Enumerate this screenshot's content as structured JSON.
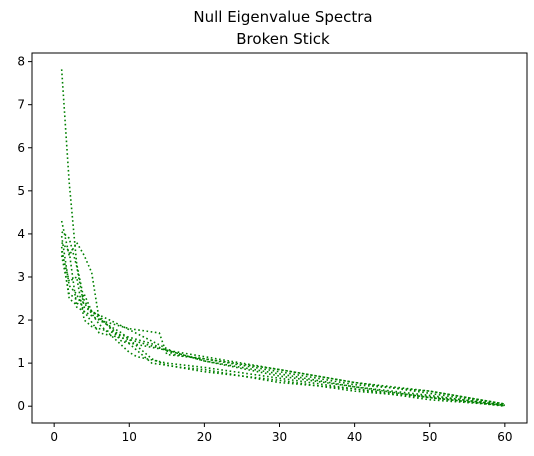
{
  "chart_data": {
    "type": "line",
    "title": "Null Eigenvalue Spectra",
    "subtitle": "Broken Stick",
    "xlabel": "",
    "ylabel": "",
    "xlim": [
      -2.95,
      62.95
    ],
    "ylim": [
      -0.39,
      8.2
    ],
    "xticks": [
      0,
      10,
      20,
      30,
      40,
      50,
      60
    ],
    "yticks": [
      0,
      1,
      2,
      3,
      4,
      5,
      6,
      7,
      8
    ],
    "grid": false,
    "line_style": "dotted",
    "color": "#008000",
    "series": [
      {
        "anchors": [
          [
            1,
            7.82
          ],
          [
            2,
            5.2
          ],
          [
            3,
            3.3
          ],
          [
            4,
            2.45
          ],
          [
            5,
            2.2
          ],
          [
            8,
            1.95
          ],
          [
            12,
            1.6
          ],
          [
            16,
            1.25
          ],
          [
            20,
            1.05
          ],
          [
            30,
            0.75
          ],
          [
            40,
            0.45
          ],
          [
            50,
            0.25
          ],
          [
            60,
            0.02
          ]
        ]
      },
      {
        "anchors": [
          [
            1,
            4.3
          ],
          [
            2,
            3.5
          ],
          [
            3,
            3.8
          ],
          [
            4,
            3.5
          ],
          [
            5,
            3.1
          ],
          [
            6,
            2.0
          ],
          [
            10,
            1.8
          ],
          [
            14,
            1.7
          ],
          [
            15,
            1.2
          ],
          [
            20,
            1.1
          ],
          [
            30,
            0.8
          ],
          [
            40,
            0.5
          ],
          [
            50,
            0.35
          ],
          [
            60,
            0.05
          ]
        ]
      },
      {
        "anchors": [
          [
            1,
            4.05
          ],
          [
            2,
            3.9
          ],
          [
            3,
            3.25
          ],
          [
            4,
            2.3
          ],
          [
            6,
            2.1
          ],
          [
            9,
            1.5
          ],
          [
            12,
            1.4
          ],
          [
            15,
            1.3
          ],
          [
            20,
            1.15
          ],
          [
            30,
            0.85
          ],
          [
            40,
            0.55
          ],
          [
            50,
            0.3
          ],
          [
            60,
            0.03
          ]
        ]
      },
      {
        "anchors": [
          [
            1,
            3.95
          ],
          [
            2,
            2.8
          ],
          [
            3,
            2.6
          ],
          [
            4,
            2.2
          ],
          [
            6,
            1.7
          ],
          [
            10,
            1.55
          ],
          [
            15,
            1.3
          ],
          [
            20,
            1.05
          ],
          [
            30,
            0.7
          ],
          [
            40,
            0.45
          ],
          [
            50,
            0.2
          ],
          [
            60,
            0.01
          ]
        ]
      },
      {
        "anchors": [
          [
            1,
            3.8
          ],
          [
            2,
            3.6
          ],
          [
            3,
            2.3
          ],
          [
            4,
            2.2
          ],
          [
            6,
            2.0
          ],
          [
            9,
            1.7
          ],
          [
            13,
            1.1
          ],
          [
            15,
            0.95
          ],
          [
            20,
            0.8
          ],
          [
            30,
            0.6
          ],
          [
            40,
            0.35
          ],
          [
            50,
            0.2
          ],
          [
            60,
            0.0
          ]
        ]
      },
      {
        "anchors": [
          [
            1,
            3.7
          ],
          [
            2,
            2.5
          ],
          [
            3,
            2.35
          ],
          [
            4,
            2.6
          ],
          [
            5,
            2.2
          ],
          [
            8,
            1.75
          ],
          [
            13,
            1.0
          ],
          [
            17,
            0.9
          ],
          [
            20,
            0.85
          ],
          [
            30,
            0.55
          ],
          [
            40,
            0.4
          ],
          [
            50,
            0.15
          ],
          [
            60,
            0.02
          ]
        ]
      },
      {
        "anchors": [
          [
            1,
            3.6
          ],
          [
            2,
            2.9
          ],
          [
            3,
            3.0
          ],
          [
            4,
            2.0
          ],
          [
            5,
            1.85
          ],
          [
            10,
            1.6
          ],
          [
            13,
            1.45
          ],
          [
            16,
            1.2
          ],
          [
            20,
            1.1
          ],
          [
            30,
            0.85
          ],
          [
            40,
            0.55
          ],
          [
            50,
            0.35
          ],
          [
            60,
            0.05
          ]
        ]
      },
      {
        "anchors": [
          [
            1,
            3.5
          ],
          [
            2,
            2.6
          ],
          [
            4,
            2.4
          ],
          [
            6,
            1.9
          ],
          [
            10,
            1.25
          ],
          [
            11,
            1.15
          ],
          [
            15,
            1.0
          ],
          [
            20,
            0.9
          ],
          [
            30,
            0.65
          ],
          [
            40,
            0.4
          ],
          [
            50,
            0.22
          ],
          [
            60,
            0.03
          ]
        ]
      }
    ]
  }
}
